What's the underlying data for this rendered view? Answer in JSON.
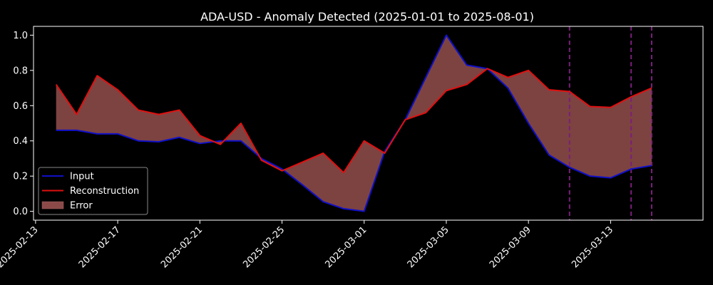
{
  "chart_data": {
    "type": "line",
    "title": "ADA-USD - Anomaly Detected (2025-01-01 to 2025-08-01)",
    "xlabel": "",
    "ylabel": "",
    "x": [
      "2025-02-14",
      "2025-02-15",
      "2025-02-16",
      "2025-02-17",
      "2025-02-18",
      "2025-02-19",
      "2025-02-20",
      "2025-02-21",
      "2025-02-22",
      "2025-02-23",
      "2025-02-24",
      "2025-02-25",
      "2025-02-26",
      "2025-02-27",
      "2025-02-28",
      "2025-03-01",
      "2025-03-02",
      "2025-03-03",
      "2025-03-04",
      "2025-03-05",
      "2025-03-06",
      "2025-03-07",
      "2025-03-08",
      "2025-03-09",
      "2025-03-10",
      "2025-03-11",
      "2025-03-12",
      "2025-03-13",
      "2025-03-14",
      "2025-03-15"
    ],
    "series": [
      {
        "name": "Input",
        "color": "#1010c8",
        "values": [
          0.46,
          0.46,
          0.44,
          0.44,
          0.4,
          0.395,
          0.42,
          0.385,
          0.4,
          0.4,
          0.3,
          0.24,
          0.15,
          0.055,
          0.015,
          0.0,
          0.34,
          0.52,
          0.76,
          1.0,
          0.83,
          0.81,
          0.7,
          0.5,
          0.32,
          0.25,
          0.2,
          0.19,
          0.24,
          0.26
        ]
      },
      {
        "name": "Reconstruction",
        "color": "#e01010",
        "values": [
          0.72,
          0.55,
          0.77,
          0.69,
          0.575,
          0.55,
          0.575,
          0.43,
          0.38,
          0.5,
          0.29,
          0.23,
          0.28,
          0.33,
          0.22,
          0.4,
          0.33,
          0.52,
          0.56,
          0.685,
          0.72,
          0.81,
          0.76,
          0.8,
          0.69,
          0.68,
          0.595,
          0.59,
          0.65,
          0.7
        ]
      }
    ],
    "error_area": {
      "name": "Error",
      "color": "#8b4a48"
    },
    "anomaly_markers": {
      "color": "#7a1f7a",
      "dates": [
        "2025-03-11",
        "2025-03-14",
        "2025-03-15"
      ]
    },
    "xticks": [
      "2025-02-13",
      "2025-02-17",
      "2025-02-21",
      "2025-02-25",
      "2025-03-01",
      "2025-03-05",
      "2025-03-09",
      "2025-03-13"
    ],
    "yticks": [
      "0.0",
      "0.2",
      "0.4",
      "0.6",
      "0.8",
      "1.0"
    ],
    "ylim": [
      -0.05,
      1.05
    ],
    "xlim": [
      "2025-02-12.9",
      "2025-03-16.5"
    ],
    "grid": false,
    "legend": {
      "position": "lower-left",
      "entries": [
        "Input",
        "Reconstruction",
        "Error"
      ]
    },
    "background": "#000000",
    "axes_color": "#ffffff"
  }
}
